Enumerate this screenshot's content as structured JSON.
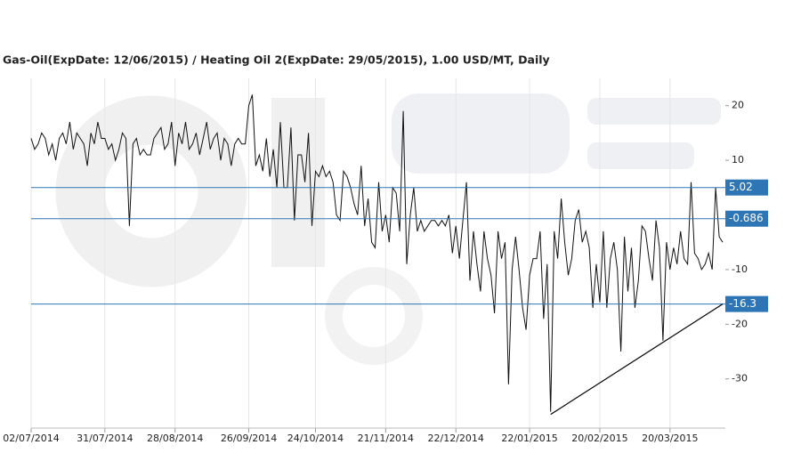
{
  "chart_data": {
    "type": "line",
    "title": "Gas-Oil(ExpDate: 12/06/2015) / Heating Oil 2(ExpDate: 29/05/2015), 1.00 USD/MT, Daily",
    "categories": [
      "02/07/2014",
      null,
      null,
      null,
      null,
      null,
      null,
      null,
      null,
      null,
      null,
      null,
      null,
      null,
      null,
      null,
      null,
      null,
      null,
      null,
      null,
      "31/07/2014",
      null,
      null,
      null,
      null,
      null,
      null,
      null,
      null,
      null,
      null,
      null,
      null,
      null,
      null,
      null,
      null,
      null,
      null,
      null,
      "28/08/2014",
      null,
      null,
      null,
      null,
      null,
      null,
      null,
      null,
      null,
      null,
      null,
      null,
      null,
      null,
      null,
      null,
      null,
      null,
      null,
      null,
      "26/09/2014",
      null,
      null,
      null,
      null,
      null,
      null,
      null,
      null,
      null,
      null,
      null,
      null,
      null,
      null,
      null,
      null,
      null,
      null,
      "24/10/2014",
      null,
      null,
      null,
      null,
      null,
      null,
      null,
      null,
      null,
      null,
      null,
      null,
      null,
      null,
      null,
      null,
      null,
      null,
      null,
      "21/11/2014",
      null,
      null,
      null,
      null,
      null,
      null,
      null,
      null,
      null,
      null,
      null,
      null,
      null,
      null,
      null,
      null,
      null,
      null,
      null,
      "22/12/2014",
      null,
      null,
      null,
      null,
      null,
      null,
      null,
      null,
      null,
      null,
      null,
      null,
      null,
      null,
      null,
      null,
      null,
      null,
      null,
      null,
      "22/01/2015",
      null,
      null,
      null,
      null,
      null,
      null,
      null,
      null,
      null,
      null,
      null,
      null,
      null,
      null,
      null,
      null,
      null,
      null,
      null,
      "20/02/2015",
      null,
      null,
      null,
      null,
      null,
      null,
      null,
      null,
      null,
      null,
      null,
      null,
      null,
      null,
      null,
      null,
      null,
      null,
      null,
      "20/03/2015",
      null,
      null,
      null,
      null,
      null,
      null,
      null,
      null,
      null,
      null,
      null,
      null,
      null,
      null,
      null
    ],
    "values": [
      14,
      12,
      13,
      15,
      14,
      11,
      13,
      10,
      14,
      15,
      13,
      17,
      12,
      15,
      14,
      13,
      9,
      15,
      13,
      17,
      14,
      14,
      12,
      13,
      10,
      12,
      15,
      14,
      -2,
      13,
      14,
      11,
      12,
      11,
      11,
      14,
      15,
      16,
      12,
      13,
      17,
      9,
      15,
      13,
      17,
      12,
      13,
      15,
      11,
      14,
      17,
      12,
      14,
      15,
      10,
      14,
      13,
      9,
      13,
      14,
      13,
      13,
      20,
      22,
      9,
      11,
      8,
      14,
      7,
      12,
      5,
      17,
      5,
      5,
      16,
      -1,
      11,
      11,
      6,
      15,
      -2,
      8,
      7,
      9,
      7,
      8,
      6,
      0,
      -1,
      8,
      7,
      5,
      2,
      0,
      9,
      -2,
      3,
      -5,
      -6,
      6,
      -3,
      0,
      -5,
      5,
      4,
      -3,
      19,
      -9,
      0,
      5,
      -3,
      -1,
      -3,
      -2,
      -1,
      -1,
      -2,
      -1,
      -2,
      0,
      -7,
      -2,
      -8,
      -1,
      6,
      -12,
      -3,
      -9,
      -14,
      -3,
      -8,
      -11,
      -18,
      -3,
      -8,
      -5,
      -31,
      -10,
      -4,
      -10,
      -17,
      -21,
      -11,
      -8,
      -8,
      -3,
      -19,
      -9,
      -36,
      -3,
      -8,
      3,
      -5,
      -11,
      -8,
      -1,
      1,
      -5,
      -3,
      -6,
      -17,
      -9,
      -16,
      -3,
      -17,
      -8,
      -5,
      -10,
      -25,
      -4,
      -14,
      -6,
      -17,
      -12,
      -2,
      -3,
      -8,
      -12,
      -1,
      -6,
      -23,
      -5,
      -10,
      -6,
      -9,
      -3,
      -8,
      -9,
      6,
      -7,
      -8,
      -10,
      -9,
      -7,
      -10,
      5,
      -4,
      -5
    ],
    "color": "#111111",
    "ylim": [
      -39,
      25
    ],
    "yticks": [
      20,
      10,
      -10,
      -20,
      -30
    ],
    "hlines": [
      5.02,
      -0.686,
      -16.3
    ],
    "hline_color": "#2e75b6",
    "trendline": {
      "x": [
        148,
        197
      ],
      "y": [
        -36.5,
        -16.3
      ]
    },
    "grid": true
  }
}
